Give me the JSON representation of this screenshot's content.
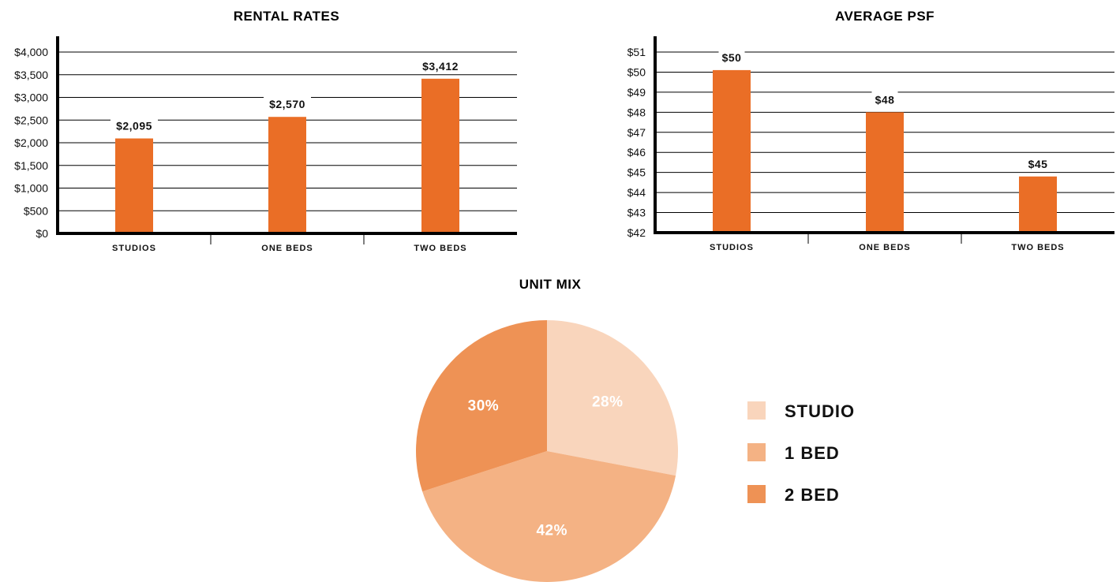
{
  "colors": {
    "bar": "#ea6e26",
    "studio": "#f9d5bc",
    "one_bed": "#f4b284",
    "two_bed": "#ee9255",
    "axis": "#000000"
  },
  "chart_data": [
    {
      "type": "bar",
      "title": "RENTAL RATES",
      "categories": [
        "STUDIOS",
        "ONE BEDS",
        "TWO BEDS"
      ],
      "values": [
        2095,
        2570,
        3412
      ],
      "value_labels": [
        "$2,095",
        "$2,570",
        "$3,412"
      ],
      "ylim": [
        0,
        4000
      ],
      "yticks": [
        0,
        500,
        1000,
        1500,
        2000,
        2500,
        3000,
        3500,
        4000
      ],
      "ytick_labels": [
        "$0",
        "$500",
        "$1,000",
        "$1,500",
        "$2,000",
        "$2,500",
        "$3,000",
        "$3,500",
        "$4,000"
      ],
      "grid": true
    },
    {
      "type": "bar",
      "title": "AVERAGE PSF",
      "categories": [
        "STUDIOS",
        "ONE BEDS",
        "TWO BEDS"
      ],
      "values": [
        50.1,
        48.0,
        44.8
      ],
      "value_labels": [
        "$50",
        "$48",
        "$45"
      ],
      "ylim": [
        42,
        51
      ],
      "yticks": [
        42,
        43,
        44,
        45,
        46,
        47,
        48,
        49,
        50,
        51
      ],
      "ytick_labels": [
        "$42",
        "$43",
        "$44",
        "$45",
        "$46",
        "$47",
        "$48",
        "$49",
        "$50",
        "$51"
      ],
      "grid": true
    },
    {
      "type": "pie",
      "title": "UNIT MIX",
      "categories": [
        "STUDIO",
        "1 BED",
        "2 BED"
      ],
      "values": [
        28,
        42,
        30
      ],
      "value_labels": [
        "28%",
        "42%",
        "30%"
      ],
      "legend": "right"
    }
  ]
}
